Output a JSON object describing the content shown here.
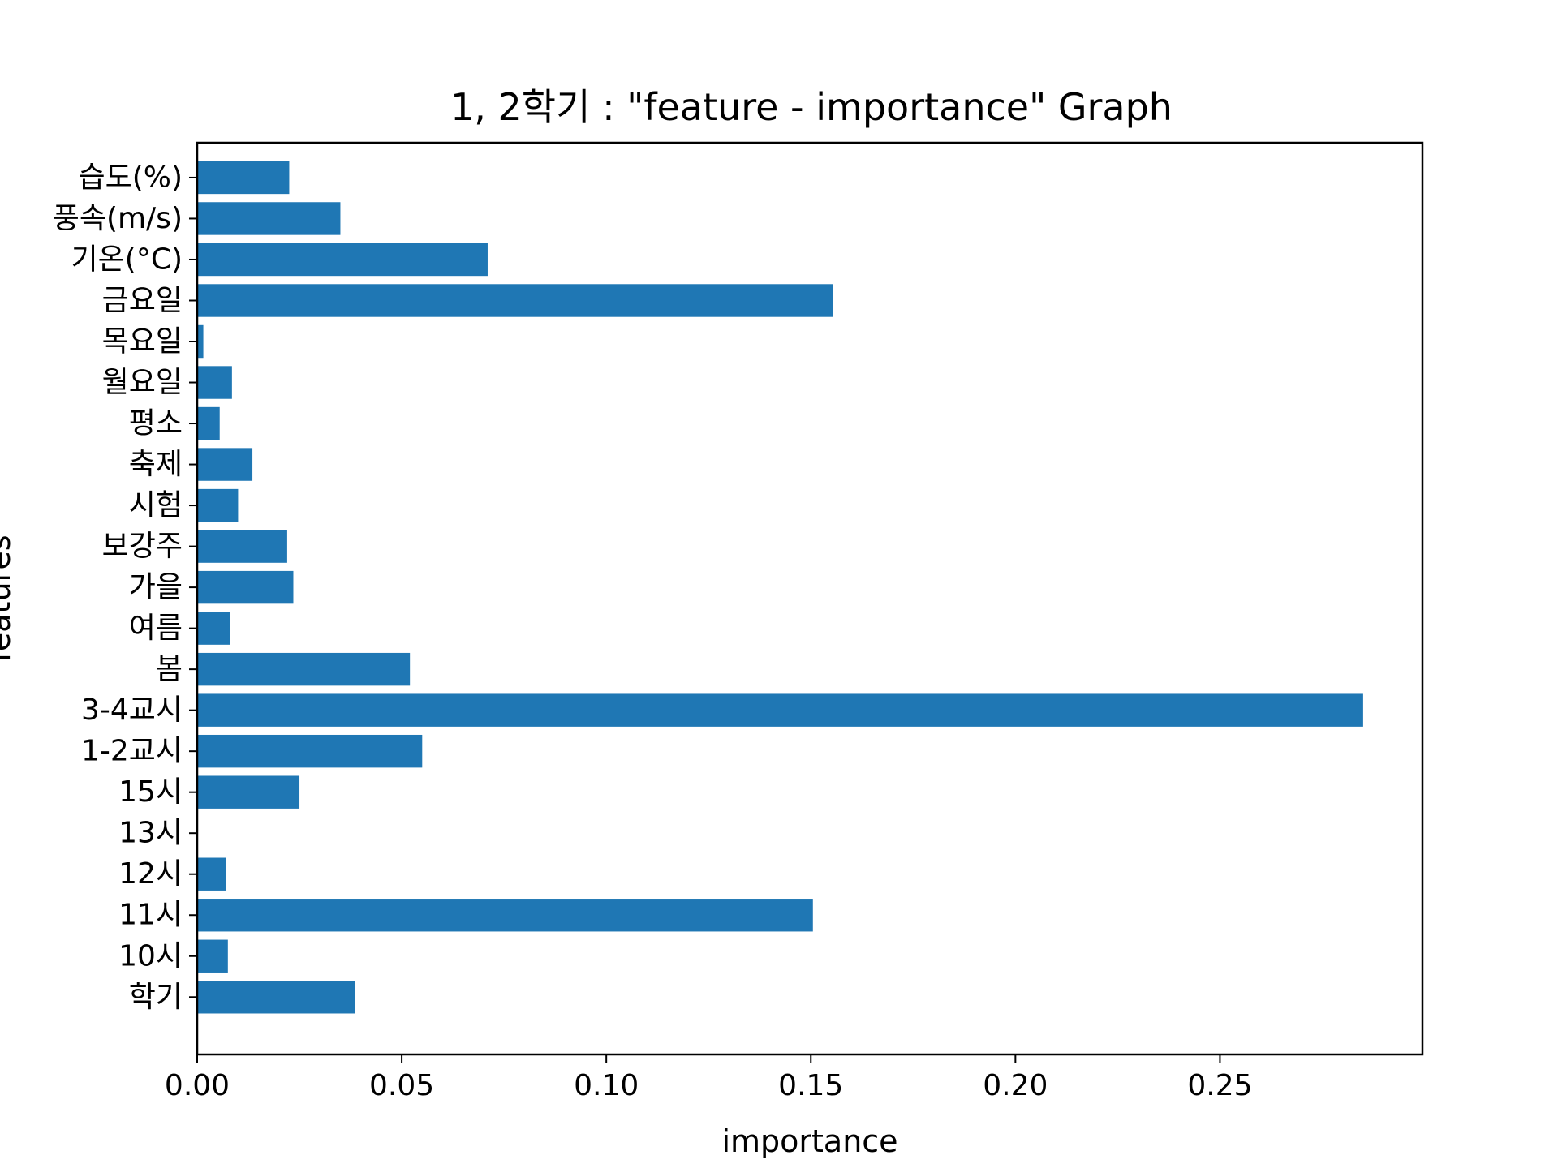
{
  "chart_data": {
    "type": "bar",
    "orientation": "horizontal",
    "title": "1, 2학기 : \"feature - importance\" Graph",
    "xlabel": "importance",
    "ylabel": "features",
    "categories": [
      "학기",
      "10시",
      "11시",
      "12시",
      "13시",
      "15시",
      "1-2교시",
      "3-4교시",
      "봄",
      "여름",
      "가을",
      "보강주",
      "시험",
      "축제",
      "평소",
      "월요일",
      "목요일",
      "금요일",
      "기온(°C)",
      "풍속(m/s)",
      "습도(%)"
    ],
    "values": [
      0.0385,
      0.0075,
      0.1505,
      0.007,
      0.0,
      0.025,
      0.055,
      0.285,
      0.052,
      0.008,
      0.0235,
      0.022,
      0.01,
      0.0135,
      0.0055,
      0.0085,
      0.0015,
      0.1555,
      0.071,
      0.035,
      0.0225
    ],
    "xticks": [
      0.0,
      0.05,
      0.1,
      0.15,
      0.2,
      0.25
    ],
    "xtick_labels": [
      "0.00",
      "0.05",
      "0.10",
      "0.15",
      "0.20",
      "0.25"
    ],
    "xlim": [
      0,
      0.2995
    ],
    "grid": false,
    "bar_color": "#1f77b4"
  }
}
